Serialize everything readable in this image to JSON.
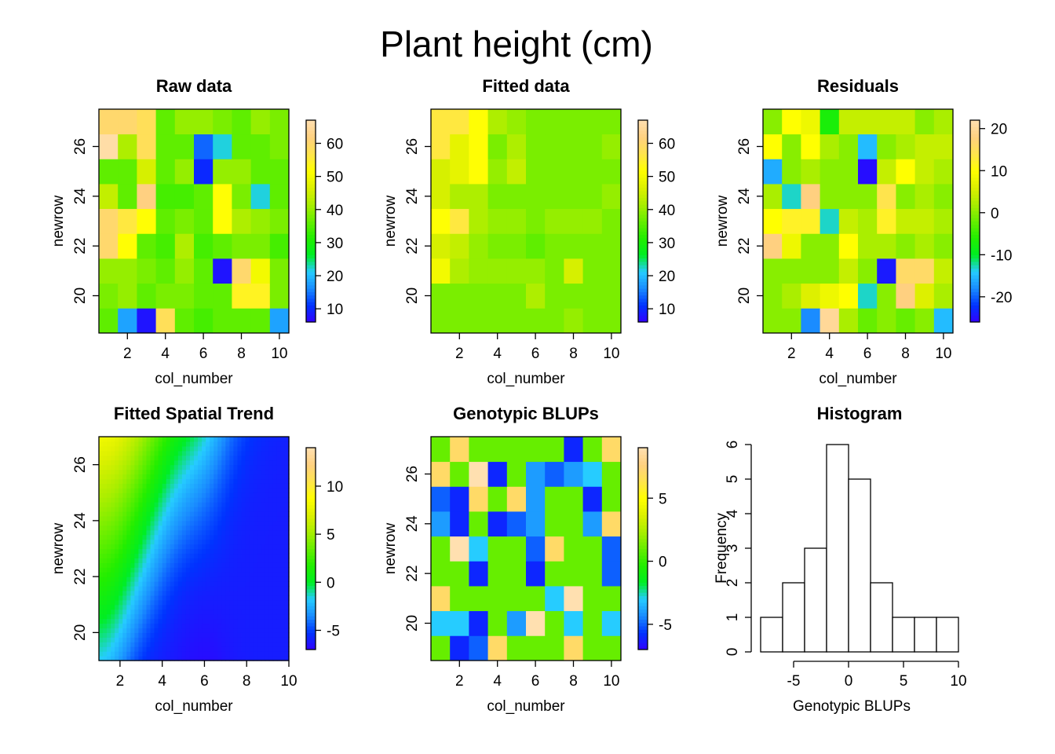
{
  "page": {
    "title": "Plant height (cm)"
  },
  "palette": [
    "#3300FF",
    "#0033FF",
    "#1A8CFF",
    "#26CCFF",
    "#00EE22",
    "#22EE00",
    "#66EE00",
    "#AAEE00",
    "#DDF000",
    "#FFFF00",
    "#FFE44D",
    "#FFD080",
    "#FFE0B0"
  ],
  "chart_data": [
    {
      "id": "raw",
      "type": "heatmap",
      "title": "Raw data",
      "xlabel": "col_number",
      "ylabel": "newrow",
      "x_ticks": [
        2,
        4,
        6,
        8,
        10
      ],
      "y_ticks": [
        20,
        22,
        24,
        26
      ],
      "xlim": [
        0.5,
        10.5
      ],
      "ylim": [
        18.5,
        27.5
      ],
      "x_values": [
        1,
        2,
        3,
        4,
        5,
        6,
        7,
        8,
        9,
        10
      ],
      "y_values": [
        19,
        20,
        21,
        22,
        23,
        24,
        25,
        26,
        27
      ],
      "zlim": [
        6,
        67
      ],
      "colorbar_ticks": [
        10,
        20,
        30,
        40,
        50,
        60
      ],
      "z": [
        [
          36,
          18,
          8,
          58,
          36,
          34,
          36,
          36,
          36,
          18
        ],
        [
          38,
          40,
          36,
          38,
          38,
          36,
          36,
          54,
          54,
          38
        ],
        [
          40,
          40,
          38,
          36,
          40,
          36,
          8,
          60,
          50,
          38
        ],
        [
          60,
          52,
          36,
          34,
          42,
          34,
          36,
          38,
          38,
          34
        ],
        [
          60,
          56,
          52,
          36,
          38,
          36,
          52,
          42,
          40,
          38
        ],
        [
          44,
          36,
          62,
          34,
          34,
          36,
          52,
          38,
          22,
          36
        ],
        [
          36,
          36,
          46,
          36,
          40,
          10,
          40,
          40,
          36,
          36
        ],
        [
          66,
          42,
          58,
          36,
          36,
          14,
          22,
          36,
          36,
          38
        ],
        [
          60,
          60,
          58,
          36,
          40,
          40,
          38,
          36,
          40,
          38
        ]
      ]
    },
    {
      "id": "fitted",
      "type": "heatmap",
      "title": "Fitted data",
      "xlabel": "col_number",
      "ylabel": "newrow",
      "x_ticks": [
        2,
        4,
        6,
        8,
        10
      ],
      "y_ticks": [
        20,
        22,
        24,
        26
      ],
      "xlim": [
        0.5,
        10.5
      ],
      "ylim": [
        18.5,
        27.5
      ],
      "x_values": [
        1,
        2,
        3,
        4,
        5,
        6,
        7,
        8,
        9,
        10
      ],
      "y_values": [
        19,
        20,
        21,
        22,
        23,
        24,
        25,
        26,
        27
      ],
      "zlim": [
        6,
        67
      ],
      "colorbar_ticks": [
        10,
        20,
        30,
        40,
        50,
        60
      ],
      "z": [
        [
          38,
          38,
          38,
          38,
          38,
          38,
          38,
          40,
          38,
          38
        ],
        [
          38,
          38,
          38,
          38,
          38,
          42,
          38,
          38,
          38,
          38
        ],
        [
          50,
          42,
          40,
          40,
          40,
          40,
          38,
          46,
          38,
          38
        ],
        [
          46,
          44,
          40,
          38,
          38,
          36,
          38,
          38,
          38,
          38
        ],
        [
          52,
          56,
          42,
          40,
          40,
          38,
          40,
          40,
          40,
          38
        ],
        [
          46,
          42,
          42,
          38,
          38,
          38,
          38,
          38,
          38,
          40
        ],
        [
          46,
          48,
          52,
          40,
          44,
          38,
          38,
          38,
          38,
          38
        ],
        [
          56,
          48,
          52,
          38,
          42,
          38,
          38,
          38,
          38,
          40
        ],
        [
          56,
          56,
          52,
          42,
          40,
          38,
          38,
          38,
          38,
          38
        ]
      ]
    },
    {
      "id": "residuals",
      "type": "heatmap",
      "title": "Residuals",
      "xlabel": "col_number",
      "ylabel": "newrow",
      "x_ticks": [
        2,
        4,
        6,
        8,
        10
      ],
      "y_ticks": [
        20,
        22,
        24,
        26
      ],
      "xlim": [
        0.5,
        10.5
      ],
      "ylim": [
        18.5,
        27.5
      ],
      "x_values": [
        1,
        2,
        3,
        4,
        5,
        6,
        7,
        8,
        9,
        10
      ],
      "y_values": [
        19,
        20,
        21,
        22,
        23,
        24,
        25,
        26,
        27
      ],
      "zlim": [
        -26,
        22
      ],
      "colorbar_ticks": [
        -20,
        -10,
        0,
        10,
        20
      ],
      "z": [
        [
          0,
          0,
          -18,
          20,
          2,
          -2,
          0,
          -2,
          0,
          -15
        ],
        [
          0,
          2,
          6,
          8,
          10,
          -13,
          0,
          18,
          6,
          2
        ],
        [
          0,
          0,
          0,
          0,
          4,
          0,
          -24,
          16,
          16,
          4
        ],
        [
          18,
          8,
          0,
          0,
          10,
          2,
          2,
          0,
          2,
          0
        ],
        [
          10,
          12,
          12,
          -13,
          4,
          2,
          12,
          4,
          4,
          2
        ],
        [
          2,
          -13,
          18,
          0,
          0,
          0,
          14,
          0,
          2,
          0
        ],
        [
          -16,
          0,
          2,
          0,
          0,
          -25,
          4,
          10,
          4,
          2
        ],
        [
          10,
          0,
          10,
          2,
          0,
          -15,
          0,
          2,
          4,
          4
        ],
        [
          0,
          10,
          8,
          -7,
          4,
          4,
          4,
          4,
          0,
          2
        ]
      ]
    },
    {
      "id": "trend",
      "type": "heatmap",
      "title": "Fitted Spatial Trend",
      "xlabel": "col_number",
      "ylabel": "newrow",
      "x_ticks": [
        2,
        4,
        6,
        8,
        10
      ],
      "y_ticks": [
        20,
        22,
        24,
        26
      ],
      "xlim": [
        1,
        10
      ],
      "ylim": [
        19,
        27
      ],
      "zlim": [
        -7,
        14
      ],
      "colorbar_ticks": [
        -5,
        0,
        5,
        10
      ],
      "surface": "smooth"
    },
    {
      "id": "blups",
      "type": "heatmap",
      "title": "Genotypic BLUPs",
      "xlabel": "col_number",
      "ylabel": "newrow",
      "x_ticks": [
        2,
        4,
        6,
        8,
        10
      ],
      "y_ticks": [
        20,
        22,
        24,
        26
      ],
      "xlim": [
        0.5,
        10.5
      ],
      "ylim": [
        18.5,
        27.5
      ],
      "x_values": [
        1,
        2,
        3,
        4,
        5,
        6,
        7,
        8,
        9,
        10
      ],
      "y_values": [
        19,
        20,
        21,
        22,
        23,
        24,
        25,
        26,
        27
      ],
      "zlim": [
        -7,
        9
      ],
      "colorbar_ticks": [
        -5,
        0,
        5
      ],
      "z": [
        [
          1,
          -6,
          -5,
          7,
          1,
          1,
          1,
          7,
          1,
          1
        ],
        [
          -3,
          -3,
          -6,
          1,
          -4,
          9,
          1,
          -3,
          1,
          -3
        ],
        [
          7,
          1,
          1,
          1,
          1,
          1,
          -3,
          9,
          1,
          1
        ],
        [
          1,
          1,
          -6,
          1,
          1,
          -6,
          1,
          1,
          1,
          -5
        ],
        [
          1,
          9,
          -3,
          1,
          1,
          -5,
          7,
          1,
          1,
          -5
        ],
        [
          -4,
          -6,
          1,
          -6,
          -5,
          -4,
          1,
          1,
          -4,
          7
        ],
        [
          -5,
          -6,
          7,
          1,
          7,
          -4,
          1,
          1,
          -6,
          1
        ],
        [
          7,
          1,
          9,
          -6,
          1,
          -4,
          -5,
          -4,
          -3,
          1
        ],
        [
          1,
          7,
          1,
          1,
          1,
          1,
          1,
          -6,
          1,
          7
        ]
      ]
    },
    {
      "id": "histogram",
      "type": "bar",
      "title": "Histogram",
      "xlabel": "Genotypic BLUPs",
      "ylabel": "Frequency",
      "bin_edges": [
        -8,
        -6,
        -4,
        -2,
        0,
        2,
        4,
        6,
        8,
        10
      ],
      "values": [
        1,
        2,
        3,
        6,
        5,
        2,
        1,
        1,
        1
      ],
      "x_ticks": [
        -5,
        0,
        5,
        10
      ],
      "y_ticks": [
        0,
        1,
        2,
        3,
        4,
        5,
        6
      ],
      "xlim": [
        -8,
        10
      ],
      "ylim": [
        0,
        6
      ]
    }
  ]
}
